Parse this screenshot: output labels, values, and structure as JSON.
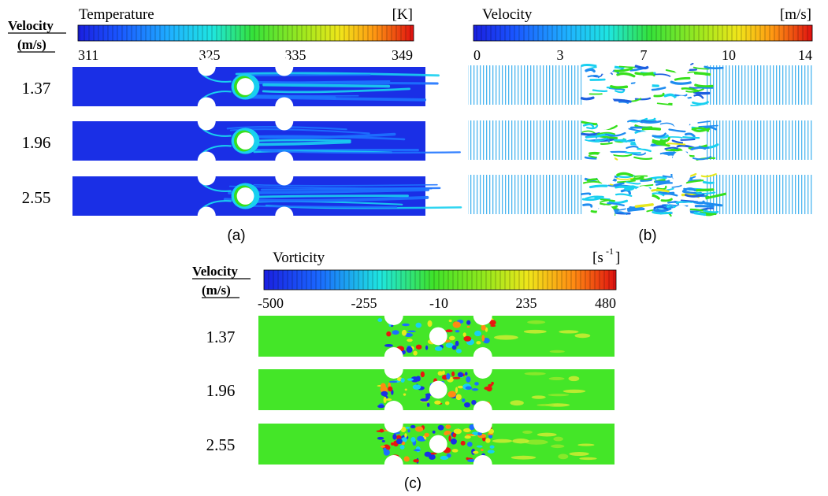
{
  "colors": {
    "cold": "#1a2fe6",
    "mid_blue": "#1d73ff",
    "cyan": "#19d0f0",
    "green": "#36e01c",
    "yellow": "#e6e81d",
    "orange": "#ff8a12",
    "red": "#e8160f",
    "vorticity_background": "#44e628"
  },
  "panel_a": {
    "header_line1": "Velocity",
    "header_line2": "(m/s)",
    "colorbar_title": "Temperature",
    "colorbar_unit": "[K]",
    "ticks": [
      "311",
      "325",
      "335",
      "349"
    ],
    "rows": [
      "1.37",
      "1.96",
      "2.55"
    ],
    "caption": "(a)"
  },
  "panel_b": {
    "colorbar_title": "Velocity",
    "colorbar_unit": "[m/s]",
    "ticks": [
      "0",
      "3",
      "7",
      "10",
      "14"
    ],
    "caption": "(b)"
  },
  "panel_c": {
    "header_line1": "Velocity",
    "header_line2": "(m/s)",
    "colorbar_title": "Vorticity",
    "colorbar_unit_base": "[s",
    "colorbar_unit_exp": "-1",
    "colorbar_unit_close": "]",
    "ticks": [
      "-500",
      "-255",
      "-10",
      "235",
      "480"
    ],
    "rows": [
      "1.37",
      "1.96",
      "2.55"
    ],
    "caption": "(c)"
  },
  "icons": {
    "domain": "channel-flow-contour-icon",
    "obstacle": "cylinder-obstacle-icon"
  }
}
